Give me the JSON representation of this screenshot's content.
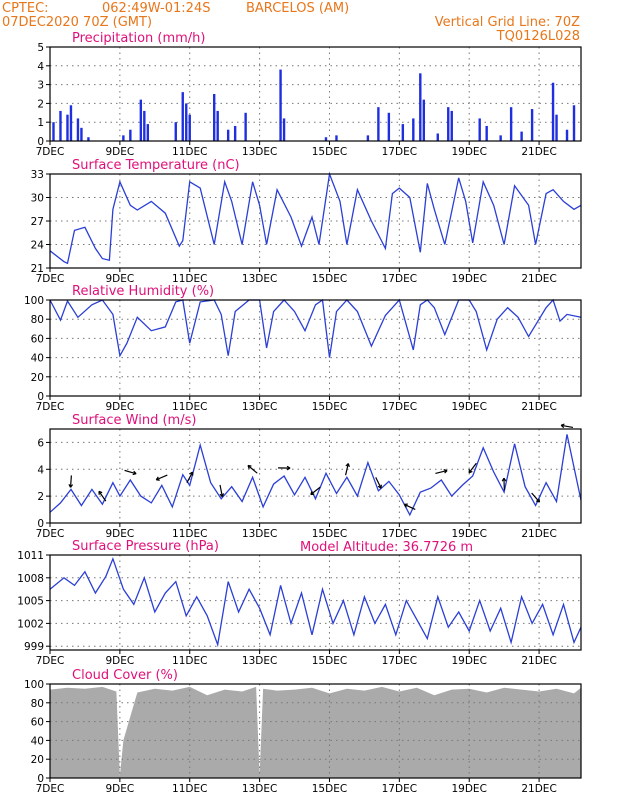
{
  "header": {
    "source": "CPTEC:",
    "coords": "062:49W-01:24S",
    "location": "BARCELOS (AM)",
    "run": "07DEC2020 70Z (GMT)",
    "grid_note": "Vertical Grid Line: 70Z",
    "code": "TQ0126L028"
  },
  "model_altitude": "Model Altitude: 36.7726 m",
  "x_axis": {
    "ticks": [
      "7DEC",
      "9DEC",
      "11DEC",
      "13DEC",
      "15DEC",
      "17DEC",
      "19DEC",
      "21DEC"
    ],
    "tick_days": [
      0,
      2,
      4,
      6,
      8,
      10,
      12,
      14
    ],
    "range_days": [
      0,
      15.2
    ]
  },
  "colors": {
    "header": "#e8761a",
    "title": "#e0107a",
    "series": "#2b3fd6",
    "bars": "#1f2fe0",
    "cloud": "#aaaaaa"
  },
  "chart_data": [
    {
      "type": "bar",
      "title": "Precipitation (mm/h)",
      "ylim": [
        0,
        5
      ],
      "yticks": [
        "0",
        "1",
        "2",
        "3",
        "4",
        "5"
      ],
      "ytick_values": [
        0,
        1,
        2,
        3,
        4,
        5
      ],
      "bars": [
        [
          0.1,
          1.0
        ],
        [
          0.3,
          1.6
        ],
        [
          0.5,
          1.4
        ],
        [
          0.6,
          1.9
        ],
        [
          0.8,
          1.2
        ],
        [
          0.9,
          0.7
        ],
        [
          1.1,
          0.2
        ],
        [
          2.1,
          0.3
        ],
        [
          2.3,
          0.6
        ],
        [
          2.6,
          2.2
        ],
        [
          2.7,
          1.6
        ],
        [
          2.8,
          0.9
        ],
        [
          3.6,
          1.0
        ],
        [
          3.8,
          2.6
        ],
        [
          3.9,
          2.0
        ],
        [
          4.0,
          1.4
        ],
        [
          4.7,
          2.5
        ],
        [
          4.8,
          1.6
        ],
        [
          5.1,
          0.6
        ],
        [
          5.3,
          0.8
        ],
        [
          5.6,
          1.5
        ],
        [
          6.6,
          3.8
        ],
        [
          6.7,
          1.2
        ],
        [
          7.9,
          0.2
        ],
        [
          8.2,
          0.3
        ],
        [
          9.1,
          0.3
        ],
        [
          9.4,
          1.8
        ],
        [
          9.7,
          1.5
        ],
        [
          10.1,
          0.9
        ],
        [
          10.4,
          1.2
        ],
        [
          10.6,
          3.6
        ],
        [
          10.7,
          2.2
        ],
        [
          11.1,
          0.4
        ],
        [
          11.4,
          1.8
        ],
        [
          11.5,
          1.6
        ],
        [
          12.3,
          1.2
        ],
        [
          12.5,
          0.8
        ],
        [
          12.9,
          0.3
        ],
        [
          13.2,
          1.8
        ],
        [
          13.5,
          0.5
        ],
        [
          13.8,
          1.7
        ],
        [
          14.4,
          3.1
        ],
        [
          14.5,
          1.4
        ],
        [
          14.8,
          0.6
        ],
        [
          15.0,
          1.9
        ]
      ]
    },
    {
      "type": "line",
      "title": "Surface Temperature (nC)",
      "ylim": [
        21,
        33
      ],
      "yticks": [
        "21",
        "24",
        "27",
        "30",
        "33"
      ],
      "ytick_values": [
        21,
        24,
        27,
        30,
        33
      ],
      "x": [
        0,
        0.4,
        0.5,
        0.7,
        1.0,
        1.3,
        1.5,
        1.7,
        1.8,
        2.0,
        2.3,
        2.5,
        2.9,
        3.3,
        3.7,
        3.8,
        4.0,
        4.3,
        4.7,
        5.0,
        5.2,
        5.5,
        5.8,
        6.0,
        6.2,
        6.5,
        6.9,
        7.2,
        7.5,
        7.7,
        8.0,
        8.3,
        8.5,
        8.8,
        9.2,
        9.6,
        9.8,
        10.0,
        10.3,
        10.6,
        10.8,
        11.0,
        11.3,
        11.7,
        11.9,
        12.1,
        12.4,
        12.7,
        13.0,
        13.3,
        13.7,
        13.9,
        14.2,
        14.4,
        14.7,
        15.0,
        15.2
      ],
      "y": [
        23.2,
        21.8,
        21.6,
        25.8,
        26.2,
        23.5,
        22.2,
        22.0,
        28.5,
        32.0,
        29.0,
        28.4,
        29.5,
        28.0,
        23.8,
        24.5,
        32.0,
        31.2,
        24.0,
        32.0,
        29.5,
        24.0,
        32.0,
        29.0,
        24.0,
        31.0,
        27.5,
        23.8,
        27.5,
        24.0,
        33.0,
        29.5,
        24.0,
        31.0,
        27.0,
        23.5,
        30.5,
        31.2,
        30.0,
        23.0,
        31.8,
        28.5,
        24.0,
        32.5,
        29.5,
        24.2,
        32.0,
        29.0,
        24.0,
        31.5,
        29.0,
        24.0,
        30.5,
        31.0,
        29.5,
        28.5,
        29.0
      ]
    },
    {
      "type": "line",
      "title": "Relative Humidity (%)",
      "ylim": [
        0,
        100
      ],
      "yticks": [
        "0",
        "20",
        "40",
        "60",
        "80",
        "100"
      ],
      "ytick_values": [
        0,
        20,
        40,
        60,
        80,
        100
      ],
      "x": [
        0,
        0.3,
        0.5,
        0.8,
        1.2,
        1.5,
        1.8,
        2.0,
        2.2,
        2.5,
        2.9,
        3.3,
        3.6,
        3.8,
        4.0,
        4.3,
        4.7,
        4.9,
        5.1,
        5.3,
        5.7,
        6.0,
        6.2,
        6.4,
        6.7,
        7.0,
        7.3,
        7.6,
        7.8,
        8.0,
        8.2,
        8.5,
        8.8,
        9.2,
        9.6,
        9.8,
        10.0,
        10.4,
        10.6,
        10.8,
        11.0,
        11.3,
        11.7,
        12.0,
        12.2,
        12.5,
        12.8,
        13.1,
        13.4,
        13.7,
        14.0,
        14.2,
        14.4,
        14.6,
        14.8,
        15.2
      ],
      "y": [
        100,
        79,
        99,
        82,
        95,
        100,
        85,
        42,
        55,
        82,
        68,
        72,
        98,
        100,
        55,
        98,
        100,
        85,
        42,
        88,
        100,
        100,
        50,
        88,
        100,
        88,
        68,
        95,
        100,
        40,
        88,
        100,
        88,
        52,
        84,
        92,
        100,
        48,
        95,
        100,
        92,
        64,
        100,
        100,
        88,
        48,
        80,
        92,
        82,
        62,
        80,
        92,
        100,
        78,
        85,
        82
      ]
    },
    {
      "type": "line",
      "title": "Surface Wind (m/s)",
      "ylim": [
        0,
        7
      ],
      "yticks": [
        "0",
        "2",
        "4",
        "6"
      ],
      "ytick_values": [
        0,
        2,
        4,
        6
      ],
      "x": [
        0,
        0.3,
        0.6,
        0.9,
        1.2,
        1.5,
        1.8,
        2.0,
        2.3,
        2.6,
        2.9,
        3.2,
        3.5,
        3.8,
        4.0,
        4.3,
        4.6,
        4.9,
        5.2,
        5.5,
        5.8,
        6.1,
        6.4,
        6.7,
        7.0,
        7.3,
        7.6,
        7.9,
        8.2,
        8.5,
        8.8,
        9.1,
        9.4,
        9.7,
        10.0,
        10.3,
        10.6,
        10.9,
        11.2,
        11.5,
        11.8,
        12.1,
        12.4,
        12.7,
        13.0,
        13.3,
        13.6,
        13.9,
        14.2,
        14.5,
        14.8,
        15.2
      ],
      "y": [
        0.8,
        1.5,
        2.5,
        1.3,
        2.5,
        1.4,
        3.0,
        2.0,
        3.2,
        2.0,
        1.5,
        2.8,
        1.2,
        3.6,
        2.8,
        5.8,
        3.0,
        1.8,
        2.7,
        1.6,
        3.4,
        1.2,
        2.9,
        3.5,
        2.1,
        3.4,
        1.8,
        3.7,
        2.2,
        3.4,
        2.0,
        4.5,
        2.4,
        3.1,
        2.1,
        0.6,
        2.3,
        2.6,
        3.2,
        2.0,
        2.8,
        3.5,
        5.6,
        3.8,
        2.3,
        5.9,
        2.7,
        1.3,
        3.0,
        1.6,
        6.6,
        1.7
      ]
    },
    {
      "type": "line",
      "title": "Surface Pressure (hPa)",
      "ylim": [
        998.5,
        1011
      ],
      "yticks": [
        "999",
        "1002",
        "1005",
        "1008",
        "1011"
      ],
      "ytick_values": [
        999,
        1002,
        1005,
        1008,
        1011
      ],
      "x": [
        0,
        0.4,
        0.7,
        1.0,
        1.3,
        1.6,
        1.8,
        2.1,
        2.4,
        2.7,
        3.0,
        3.3,
        3.6,
        3.9,
        4.2,
        4.5,
        4.8,
        5.1,
        5.4,
        5.7,
        6.0,
        6.3,
        6.6,
        6.9,
        7.2,
        7.5,
        7.8,
        8.1,
        8.4,
        8.7,
        9.0,
        9.3,
        9.6,
        9.9,
        10.2,
        10.5,
        10.8,
        11.1,
        11.4,
        11.7,
        12.0,
        12.3,
        12.6,
        12.9,
        13.2,
        13.5,
        13.8,
        14.1,
        14.4,
        14.7,
        15.0,
        15.2
      ],
      "y": [
        1006.5,
        1008.0,
        1007.0,
        1008.8,
        1006.0,
        1008.2,
        1010.5,
        1006.5,
        1004.5,
        1008.0,
        1003.5,
        1006.0,
        1007.5,
        1003.0,
        1005.5,
        1003.0,
        999.2,
        1007.5,
        1003.5,
        1006.5,
        1004.0,
        1000.5,
        1007.0,
        1002.0,
        1006.0,
        1000.5,
        1006.5,
        1002.0,
        1005.0,
        1000.5,
        1005.5,
        1002.0,
        1004.5,
        1000.5,
        1005.0,
        1002.5,
        1000.0,
        1005.5,
        1001.5,
        1003.5,
        1001.0,
        1005.0,
        1001.0,
        1004.0,
        999.5,
        1005.5,
        1002.0,
        1004.5,
        1000.5,
        1004.5,
        999.5,
        1001.5
      ]
    },
    {
      "type": "area",
      "title": "Cloud Cover (%)",
      "ylim": [
        0,
        100
      ],
      "yticks": [
        "0",
        "20",
        "40",
        "60",
        "80",
        "100"
      ],
      "ytick_values": [
        0,
        20,
        40,
        60,
        80,
        100
      ],
      "x": [
        0,
        0.5,
        1.0,
        1.5,
        1.9,
        2.0,
        2.1,
        2.5,
        3.0,
        3.5,
        4.0,
        4.5,
        5.0,
        5.5,
        5.9,
        6.0,
        6.1,
        6.5,
        7.0,
        7.5,
        8.0,
        8.5,
        9.0,
        9.5,
        10.0,
        10.5,
        11.0,
        11.5,
        12.0,
        12.5,
        13.0,
        13.5,
        14.0,
        14.5,
        15.0,
        15.2
      ],
      "y": [
        94,
        96,
        95,
        97,
        92,
        2,
        40,
        91,
        95,
        93,
        97,
        88,
        94,
        92,
        97,
        3,
        95,
        93,
        94,
        96,
        90,
        95,
        93,
        97,
        92,
        96,
        88,
        94,
        95,
        91,
        96,
        94,
        92,
        95,
        90,
        96
      ]
    }
  ]
}
